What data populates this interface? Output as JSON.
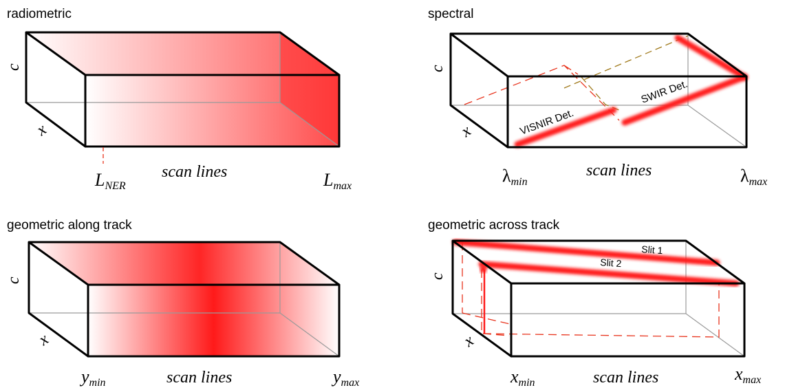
{
  "panels": {
    "radiometric": {
      "title": "radiometric",
      "c_label": "c",
      "x_label": "x",
      "scan_label": "scan lines",
      "left_symbol": "L",
      "left_sub": "NER",
      "right_symbol": "L",
      "right_sub": "max"
    },
    "spectral": {
      "title": "spectral",
      "c_label": "c",
      "x_label": "x",
      "scan_label": "scan lines",
      "left_symbol": "λ",
      "left_sub": "min",
      "right_symbol": "λ",
      "right_sub": "max",
      "detector_1": "VISNIR Det.",
      "detector_2": "SWIR Det."
    },
    "along_track": {
      "title": "geometric along track",
      "c_label": "c",
      "x_label": "x",
      "scan_label": "scan lines",
      "left_symbol": "y",
      "left_sub": "min",
      "right_symbol": "y",
      "right_sub": "max"
    },
    "across_track": {
      "title": "geometric across track",
      "c_label": "c",
      "x_label": "x",
      "scan_label": "scan lines",
      "left_symbol": "x",
      "left_sub": "min",
      "right_symbol": "x",
      "right_sub": "max",
      "slit_1": "Slit 1",
      "slit_2": "Slit 2"
    }
  },
  "colors": {
    "accent": "#ff1a1a",
    "edge": "#000000",
    "hidden_edge": "#9a9a9a"
  }
}
